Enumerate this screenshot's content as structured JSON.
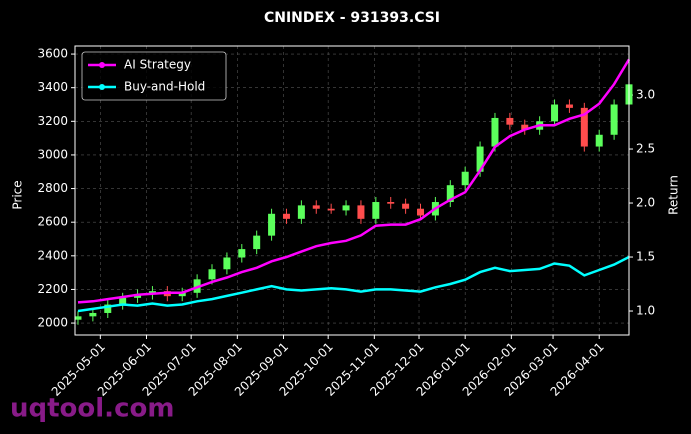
{
  "chart_data": {
    "type": "candlestick",
    "title": "CNINDEX - 931393.CSI",
    "ylabel": "Price",
    "y2label": "Return",
    "watermark": "uqtool.com",
    "x": [
      "2025-04-16",
      "2025-04-26",
      "2025-05-06",
      "2025-05-16",
      "2025-05-26",
      "2025-06-05",
      "2025-06-15",
      "2025-06-25",
      "2025-07-05",
      "2025-07-15",
      "2025-07-25",
      "2025-08-04",
      "2025-08-14",
      "2025-08-24",
      "2025-09-03",
      "2025-09-13",
      "2025-09-23",
      "2025-10-03",
      "2025-10-13",
      "2025-10-23",
      "2025-11-02",
      "2025-11-12",
      "2025-11-22",
      "2025-12-02",
      "2025-12-12",
      "2025-12-22",
      "2026-01-01",
      "2026-01-11",
      "2026-01-21",
      "2026-01-31",
      "2026-02-10",
      "2026-02-20",
      "2026-03-02",
      "2026-03-12",
      "2026-03-22",
      "2026-04-01",
      "2026-04-11",
      "2026-04-21"
    ],
    "open": [
      2020,
      2040,
      2060,
      2110,
      2150,
      2170,
      2190,
      2160,
      2180,
      2260,
      2320,
      2390,
      2440,
      2520,
      2650,
      2620,
      2700,
      2680,
      2670,
      2700,
      2620,
      2720,
      2710,
      2680,
      2640,
      2720,
      2820,
      2900,
      3050,
      3220,
      3180,
      3150,
      3200,
      3300,
      3280,
      3050,
      3120,
      3300
    ],
    "high": [
      2070,
      2090,
      2140,
      2180,
      2200,
      2220,
      2220,
      2210,
      2290,
      2350,
      2420,
      2470,
      2550,
      2680,
      2680,
      2730,
      2730,
      2710,
      2730,
      2730,
      2750,
      2750,
      2740,
      2710,
      2750,
      2850,
      2930,
      3080,
      3250,
      3250,
      3210,
      3230,
      3330,
      3330,
      3310,
      3150,
      3330,
      3450
    ],
    "low": [
      1990,
      2010,
      2030,
      2080,
      2120,
      2140,
      2130,
      2130,
      2150,
      2230,
      2290,
      2360,
      2410,
      2490,
      2590,
      2590,
      2650,
      2650,
      2640,
      2590,
      2590,
      2680,
      2650,
      2610,
      2610,
      2690,
      2790,
      2870,
      3020,
      3150,
      3120,
      3120,
      3170,
      3250,
      3020,
      3020,
      3090,
      3270
    ],
    "close": [
      2040,
      2060,
      2110,
      2150,
      2170,
      2190,
      2160,
      2180,
      2260,
      2320,
      2390,
      2440,
      2520,
      2650,
      2620,
      2700,
      2680,
      2670,
      2700,
      2620,
      2720,
      2710,
      2680,
      2640,
      2720,
      2820,
      2900,
      3050,
      3220,
      3180,
      3150,
      3200,
      3300,
      3280,
      3050,
      3120,
      3300,
      3420
    ],
    "up_color": "#5cff5c",
    "down_color": "#ff4d4d",
    "series": [
      {
        "name": "AI Strategy",
        "color": "#ff00ff",
        "axis": "y2",
        "values": [
          1.08,
          1.09,
          1.11,
          1.13,
          1.15,
          1.16,
          1.17,
          1.17,
          1.22,
          1.27,
          1.31,
          1.36,
          1.4,
          1.46,
          1.5,
          1.55,
          1.6,
          1.63,
          1.65,
          1.7,
          1.79,
          1.8,
          1.8,
          1.85,
          1.95,
          2.03,
          2.1,
          2.3,
          2.52,
          2.62,
          2.68,
          2.72,
          2.72,
          2.78,
          2.82,
          2.92,
          3.1,
          3.33
        ]
      },
      {
        "name": "Buy-and-Hold",
        "color": "#00ffff",
        "axis": "y2",
        "values": [
          1.0,
          1.02,
          1.04,
          1.06,
          1.05,
          1.07,
          1.05,
          1.06,
          1.09,
          1.11,
          1.14,
          1.17,
          1.2,
          1.23,
          1.2,
          1.19,
          1.2,
          1.21,
          1.2,
          1.18,
          1.2,
          1.2,
          1.19,
          1.18,
          1.22,
          1.25,
          1.29,
          1.36,
          1.4,
          1.37,
          1.38,
          1.39,
          1.44,
          1.42,
          1.33,
          1.38,
          1.43,
          1.5
        ]
      }
    ],
    "xlim": [
      "2025-04-14",
      "2026-04-21"
    ],
    "xticks": [
      "2025-05-01",
      "2025-06-01",
      "2025-07-01",
      "2025-08-01",
      "2025-09-01",
      "2025-10-01",
      "2025-11-01",
      "2025-12-01",
      "2026-01-01",
      "2026-02-01",
      "2026-03-01",
      "2026-04-01"
    ],
    "ylim": [
      1929,
      3648
    ],
    "yticks": [
      2000,
      2200,
      2400,
      2600,
      2800,
      3000,
      3200,
      3400,
      3600
    ],
    "y2lim": [
      0.778,
      3.454
    ],
    "y2ticks": [
      {
        "value": 1,
        "label": "1.0"
      },
      {
        "value": 1.5,
        "label": "1.5"
      },
      {
        "value": 2,
        "label": "2.0"
      },
      {
        "value": 2.5,
        "label": "2.5"
      },
      {
        "value": 3,
        "label": "3.0"
      }
    ],
    "grid": true,
    "legend": "upper left"
  }
}
